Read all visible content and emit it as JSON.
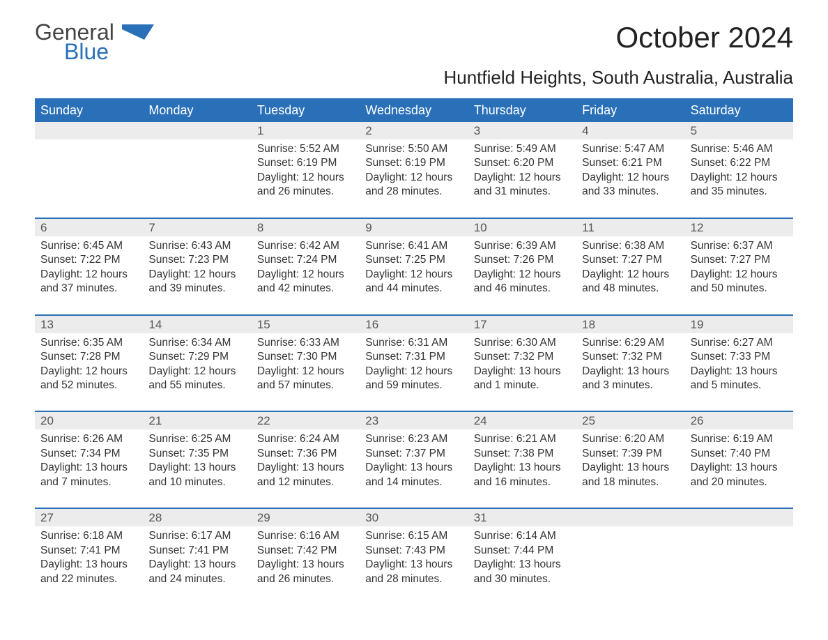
{
  "logo": {
    "word1": "General",
    "word2": "Blue",
    "word1_color": "#444444",
    "word2_color": "#2a70b8",
    "flag_color": "#2a70b8"
  },
  "title": "October 2024",
  "location": "Huntfield Heights, South Australia, Australia",
  "colors": {
    "header_bg": "#2a70b8",
    "header_text": "#ffffff",
    "daynum_bg": "#ececec",
    "daynum_text": "#555555",
    "body_text": "#333333",
    "week_rule": "#2a70b8",
    "page_bg": "#ffffff"
  },
  "typography": {
    "title_fontsize": 42,
    "location_fontsize": 26,
    "dayheader_fontsize": 18,
    "daynum_fontsize": 17,
    "cell_fontsize": 15.5,
    "logo_fontsize": 32
  },
  "layout": {
    "columns": 7,
    "weeks": 5,
    "col_labels": [
      "Sunday",
      "Monday",
      "Tuesday",
      "Wednesday",
      "Thursday",
      "Friday",
      "Saturday"
    ]
  },
  "days": [
    "Sunday",
    "Monday",
    "Tuesday",
    "Wednesday",
    "Thursday",
    "Friday",
    "Saturday"
  ],
  "weeks": [
    [
      null,
      null,
      {
        "n": "1",
        "sunrise": "Sunrise: 5:52 AM",
        "sunset": "Sunset: 6:19 PM",
        "dl1": "Daylight: 12 hours",
        "dl2": "and 26 minutes."
      },
      {
        "n": "2",
        "sunrise": "Sunrise: 5:50 AM",
        "sunset": "Sunset: 6:19 PM",
        "dl1": "Daylight: 12 hours",
        "dl2": "and 28 minutes."
      },
      {
        "n": "3",
        "sunrise": "Sunrise: 5:49 AM",
        "sunset": "Sunset: 6:20 PM",
        "dl1": "Daylight: 12 hours",
        "dl2": "and 31 minutes."
      },
      {
        "n": "4",
        "sunrise": "Sunrise: 5:47 AM",
        "sunset": "Sunset: 6:21 PM",
        "dl1": "Daylight: 12 hours",
        "dl2": "and 33 minutes."
      },
      {
        "n": "5",
        "sunrise": "Sunrise: 5:46 AM",
        "sunset": "Sunset: 6:22 PM",
        "dl1": "Daylight: 12 hours",
        "dl2": "and 35 minutes."
      }
    ],
    [
      {
        "n": "6",
        "sunrise": "Sunrise: 6:45 AM",
        "sunset": "Sunset: 7:22 PM",
        "dl1": "Daylight: 12 hours",
        "dl2": "and 37 minutes."
      },
      {
        "n": "7",
        "sunrise": "Sunrise: 6:43 AM",
        "sunset": "Sunset: 7:23 PM",
        "dl1": "Daylight: 12 hours",
        "dl2": "and 39 minutes."
      },
      {
        "n": "8",
        "sunrise": "Sunrise: 6:42 AM",
        "sunset": "Sunset: 7:24 PM",
        "dl1": "Daylight: 12 hours",
        "dl2": "and 42 minutes."
      },
      {
        "n": "9",
        "sunrise": "Sunrise: 6:41 AM",
        "sunset": "Sunset: 7:25 PM",
        "dl1": "Daylight: 12 hours",
        "dl2": "and 44 minutes."
      },
      {
        "n": "10",
        "sunrise": "Sunrise: 6:39 AM",
        "sunset": "Sunset: 7:26 PM",
        "dl1": "Daylight: 12 hours",
        "dl2": "and 46 minutes."
      },
      {
        "n": "11",
        "sunrise": "Sunrise: 6:38 AM",
        "sunset": "Sunset: 7:27 PM",
        "dl1": "Daylight: 12 hours",
        "dl2": "and 48 minutes."
      },
      {
        "n": "12",
        "sunrise": "Sunrise: 6:37 AM",
        "sunset": "Sunset: 7:27 PM",
        "dl1": "Daylight: 12 hours",
        "dl2": "and 50 minutes."
      }
    ],
    [
      {
        "n": "13",
        "sunrise": "Sunrise: 6:35 AM",
        "sunset": "Sunset: 7:28 PM",
        "dl1": "Daylight: 12 hours",
        "dl2": "and 52 minutes."
      },
      {
        "n": "14",
        "sunrise": "Sunrise: 6:34 AM",
        "sunset": "Sunset: 7:29 PM",
        "dl1": "Daylight: 12 hours",
        "dl2": "and 55 minutes."
      },
      {
        "n": "15",
        "sunrise": "Sunrise: 6:33 AM",
        "sunset": "Sunset: 7:30 PM",
        "dl1": "Daylight: 12 hours",
        "dl2": "and 57 minutes."
      },
      {
        "n": "16",
        "sunrise": "Sunrise: 6:31 AM",
        "sunset": "Sunset: 7:31 PM",
        "dl1": "Daylight: 12 hours",
        "dl2": "and 59 minutes."
      },
      {
        "n": "17",
        "sunrise": "Sunrise: 6:30 AM",
        "sunset": "Sunset: 7:32 PM",
        "dl1": "Daylight: 13 hours",
        "dl2": "and 1 minute."
      },
      {
        "n": "18",
        "sunrise": "Sunrise: 6:29 AM",
        "sunset": "Sunset: 7:32 PM",
        "dl1": "Daylight: 13 hours",
        "dl2": "and 3 minutes."
      },
      {
        "n": "19",
        "sunrise": "Sunrise: 6:27 AM",
        "sunset": "Sunset: 7:33 PM",
        "dl1": "Daylight: 13 hours",
        "dl2": "and 5 minutes."
      }
    ],
    [
      {
        "n": "20",
        "sunrise": "Sunrise: 6:26 AM",
        "sunset": "Sunset: 7:34 PM",
        "dl1": "Daylight: 13 hours",
        "dl2": "and 7 minutes."
      },
      {
        "n": "21",
        "sunrise": "Sunrise: 6:25 AM",
        "sunset": "Sunset: 7:35 PM",
        "dl1": "Daylight: 13 hours",
        "dl2": "and 10 minutes."
      },
      {
        "n": "22",
        "sunrise": "Sunrise: 6:24 AM",
        "sunset": "Sunset: 7:36 PM",
        "dl1": "Daylight: 13 hours",
        "dl2": "and 12 minutes."
      },
      {
        "n": "23",
        "sunrise": "Sunrise: 6:23 AM",
        "sunset": "Sunset: 7:37 PM",
        "dl1": "Daylight: 13 hours",
        "dl2": "and 14 minutes."
      },
      {
        "n": "24",
        "sunrise": "Sunrise: 6:21 AM",
        "sunset": "Sunset: 7:38 PM",
        "dl1": "Daylight: 13 hours",
        "dl2": "and 16 minutes."
      },
      {
        "n": "25",
        "sunrise": "Sunrise: 6:20 AM",
        "sunset": "Sunset: 7:39 PM",
        "dl1": "Daylight: 13 hours",
        "dl2": "and 18 minutes."
      },
      {
        "n": "26",
        "sunrise": "Sunrise: 6:19 AM",
        "sunset": "Sunset: 7:40 PM",
        "dl1": "Daylight: 13 hours",
        "dl2": "and 20 minutes."
      }
    ],
    [
      {
        "n": "27",
        "sunrise": "Sunrise: 6:18 AM",
        "sunset": "Sunset: 7:41 PM",
        "dl1": "Daylight: 13 hours",
        "dl2": "and 22 minutes."
      },
      {
        "n": "28",
        "sunrise": "Sunrise: 6:17 AM",
        "sunset": "Sunset: 7:41 PM",
        "dl1": "Daylight: 13 hours",
        "dl2": "and 24 minutes."
      },
      {
        "n": "29",
        "sunrise": "Sunrise: 6:16 AM",
        "sunset": "Sunset: 7:42 PM",
        "dl1": "Daylight: 13 hours",
        "dl2": "and 26 minutes."
      },
      {
        "n": "30",
        "sunrise": "Sunrise: 6:15 AM",
        "sunset": "Sunset: 7:43 PM",
        "dl1": "Daylight: 13 hours",
        "dl2": "and 28 minutes."
      },
      {
        "n": "31",
        "sunrise": "Sunrise: 6:14 AM",
        "sunset": "Sunset: 7:44 PM",
        "dl1": "Daylight: 13 hours",
        "dl2": "and 30 minutes."
      },
      null,
      null
    ]
  ]
}
